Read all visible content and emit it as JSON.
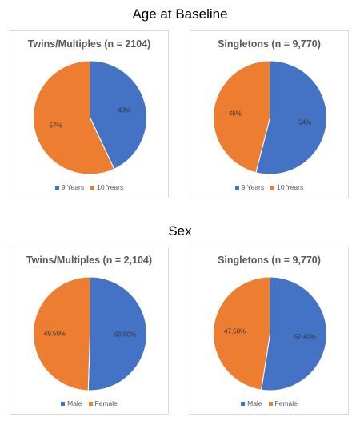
{
  "titles": {
    "age": "Age at Baseline",
    "sex": "Sex"
  },
  "colors": {
    "blue": "#4472c4",
    "orange": "#ed7d31"
  },
  "chart_data": [
    {
      "type": "pie",
      "title": "Twins/Multiples (n = 2104)",
      "slices": [
        {
          "label": "9 Years",
          "value": 43,
          "text": "43%"
        },
        {
          "label": "10 Years",
          "value": 57,
          "text": "57%"
        }
      ]
    },
    {
      "type": "pie",
      "title": "Singletons (n = 9,770)",
      "slices": [
        {
          "label": "9 Years",
          "value": 54,
          "text": "54%"
        },
        {
          "label": "10 Years",
          "value": 46,
          "text": "46%"
        }
      ]
    },
    {
      "type": "pie",
      "title": "Twins/Multiples (n = 2,104)",
      "slices": [
        {
          "label": "Male",
          "value": 50.5,
          "text": "50.50%"
        },
        {
          "label": "Female",
          "value": 49.5,
          "text": "49.50%"
        }
      ]
    },
    {
      "type": "pie",
      "title": "Singletons (n = 9,770)",
      "slices": [
        {
          "label": "Male",
          "value": 52.4,
          "text": "52.40%"
        },
        {
          "label": "Female",
          "value": 47.5,
          "text": "47.50%"
        }
      ]
    }
  ]
}
